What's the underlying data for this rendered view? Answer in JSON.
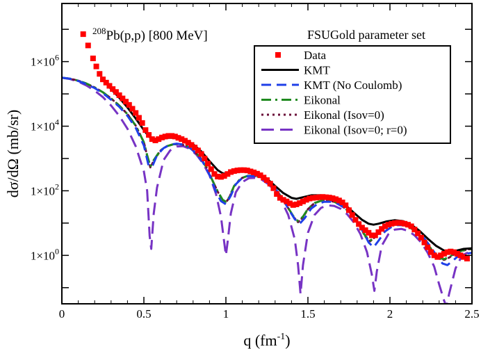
{
  "chart_data": {
    "type": "line",
    "xlabel": "q (fm",
    "xlabel_sup": "-1",
    "xlabel_close": ")",
    "ylabel": "dσ/dΩ (mb/sr)",
    "yscale": "log",
    "xlim": [
      0,
      2.5
    ],
    "ylim_log10": [
      -1.5,
      7.8
    ],
    "x_ticks": [
      {
        "value": 0,
        "label": "0"
      },
      {
        "value": 0.5,
        "label": "0.5"
      },
      {
        "value": 1,
        "label": "1"
      },
      {
        "value": 1.5,
        "label": "1.5"
      },
      {
        "value": 2,
        "label": "2"
      },
      {
        "value": 2.5,
        "label": "2.5"
      }
    ],
    "y_ticks": [
      {
        "exp": 0,
        "base": "1×10",
        "sup": "0"
      },
      {
        "exp": 2,
        "base": "1×10",
        "sup": "2"
      },
      {
        "exp": 4,
        "base": "1×10",
        "sup": "4"
      },
      {
        "exp": 6,
        "base": "1×10",
        "sup": "6"
      }
    ],
    "annotation": {
      "sup": "208",
      "text": "Pb(p,p) [800 MeV]"
    },
    "legend_title": "FSUGold parameter set",
    "legend_position": "top-right",
    "series": [
      {
        "name": "Data",
        "style": "points",
        "color": "#ff0000",
        "x": [
          0.13,
          0.16,
          0.19,
          0.21,
          0.23,
          0.25,
          0.27,
          0.29,
          0.31,
          0.33,
          0.35,
          0.37,
          0.39,
          0.41,
          0.43,
          0.45,
          0.47,
          0.49,
          0.51,
          0.53,
          0.55,
          0.57,
          0.59,
          0.61,
          0.63,
          0.65,
          0.67,
          0.69,
          0.71,
          0.73,
          0.75,
          0.77,
          0.79,
          0.81,
          0.83,
          0.85,
          0.87,
          0.89,
          0.91,
          0.93,
          0.95,
          0.97,
          0.99,
          1.01,
          1.03,
          1.05,
          1.07,
          1.09,
          1.11,
          1.13,
          1.15,
          1.17,
          1.19,
          1.21,
          1.23,
          1.25,
          1.27,
          1.29,
          1.31,
          1.33,
          1.35,
          1.37,
          1.39,
          1.41,
          1.43,
          1.45,
          1.47,
          1.49,
          1.51,
          1.53,
          1.55,
          1.57,
          1.59,
          1.61,
          1.63,
          1.65,
          1.67,
          1.69,
          1.71,
          1.73,
          1.75,
          1.77,
          1.79,
          1.81,
          1.83,
          1.85,
          1.87,
          1.89,
          1.91,
          1.93,
          1.95,
          1.97,
          1.99,
          2.01,
          2.03,
          2.05,
          2.07,
          2.09,
          2.11,
          2.13,
          2.15,
          2.17,
          2.19,
          2.21,
          2.23,
          2.25,
          2.27,
          2.29,
          2.31,
          2.33,
          2.35,
          2.37,
          2.39,
          2.41,
          2.43,
          2.45,
          2.47
        ],
        "log10y": [
          6.85,
          6.5,
          6.1,
          5.85,
          5.62,
          5.45,
          5.35,
          5.25,
          5.15,
          5.06,
          4.96,
          4.86,
          4.76,
          4.66,
          4.54,
          4.41,
          4.26,
          4.1,
          3.88,
          3.73,
          3.6,
          3.56,
          3.6,
          3.65,
          3.68,
          3.7,
          3.7,
          3.68,
          3.64,
          3.6,
          3.55,
          3.49,
          3.42,
          3.34,
          3.25,
          3.14,
          3.0,
          2.84,
          2.67,
          2.52,
          2.44,
          2.43,
          2.46,
          2.52,
          2.58,
          2.61,
          2.63,
          2.64,
          2.64,
          2.63,
          2.6,
          2.57,
          2.53,
          2.48,
          2.41,
          2.33,
          2.22,
          2.08,
          1.9,
          1.78,
          1.72,
          1.67,
          1.61,
          1.56,
          1.58,
          1.62,
          1.67,
          1.72,
          1.76,
          1.78,
          1.79,
          1.8,
          1.81,
          1.8,
          1.79,
          1.77,
          1.74,
          1.7,
          1.64,
          1.55,
          1.4,
          1.25,
          1.1,
          0.97,
          0.86,
          0.78,
          0.7,
          0.62,
          0.62,
          0.72,
          0.82,
          0.9,
          0.95,
          0.98,
          1.0,
          1.01,
          1.0,
          0.98,
          0.95,
          0.9,
          0.8,
          0.68,
          0.55,
          0.4,
          0.25,
          0.1,
          0.0,
          -0.05,
          0.0,
          0.05,
          0.1,
          0.12,
          0.1,
          0.05,
          0.0,
          -0.05,
          -0.1
        ]
      },
      {
        "name": "KMT",
        "style": "solid",
        "color": "#000000",
        "width": 3,
        "x": [
          0.25,
          0.3,
          0.35,
          0.4,
          0.45,
          0.5,
          0.53,
          0.56,
          0.6,
          0.65,
          0.7,
          0.75,
          0.8,
          0.85,
          0.9,
          0.95,
          0.98,
          1.01,
          1.05,
          1.1,
          1.15,
          1.2,
          1.25,
          1.3,
          1.35,
          1.4,
          1.43,
          1.47,
          1.52,
          1.58,
          1.63,
          1.68,
          1.73,
          1.78,
          1.83,
          1.87,
          1.9,
          1.93,
          1.98,
          2.03,
          2.08,
          2.13,
          2.18,
          2.23,
          2.28,
          2.33,
          2.36,
          2.4,
          2.45,
          2.5
        ],
        "log10y": [
          5.45,
          5.15,
          4.88,
          4.58,
          4.24,
          3.88,
          3.68,
          3.58,
          3.6,
          3.64,
          3.64,
          3.58,
          3.44,
          3.22,
          2.92,
          2.64,
          2.54,
          2.52,
          2.58,
          2.62,
          2.6,
          2.52,
          2.38,
          2.15,
          1.93,
          1.78,
          1.75,
          1.8,
          1.86,
          1.86,
          1.82,
          1.72,
          1.55,
          1.32,
          1.1,
          0.98,
          0.95,
          0.98,
          1.05,
          1.09,
          1.06,
          0.95,
          0.76,
          0.52,
          0.3,
          0.15,
          0.12,
          0.14,
          0.2,
          0.22
        ]
      },
      {
        "name": "KMT (No Coulomb)",
        "style": "dash",
        "color": "#1f3fe8",
        "width": 3,
        "x": [
          0,
          0.05,
          0.1,
          0.15,
          0.2,
          0.25,
          0.3,
          0.35,
          0.4,
          0.45,
          0.5,
          0.53,
          0.555,
          0.58,
          0.62,
          0.66,
          0.7,
          0.74,
          0.78,
          0.82,
          0.86,
          0.9,
          0.94,
          0.97,
          1.0,
          1.03,
          1.06,
          1.1,
          1.14,
          1.18,
          1.22,
          1.26,
          1.3,
          1.34,
          1.38,
          1.42,
          1.45,
          1.48,
          1.52,
          1.56,
          1.6,
          1.64,
          1.68,
          1.72,
          1.76,
          1.8,
          1.84,
          1.87,
          1.9,
          1.93,
          1.97,
          2.01,
          2.05,
          2.09,
          2.13,
          2.17,
          2.21,
          2.25,
          2.29,
          2.32,
          2.35,
          2.38,
          2.42,
          2.46,
          2.5
        ],
        "log10y": [
          5.5,
          5.47,
          5.4,
          5.3,
          5.18,
          5.02,
          4.82,
          4.6,
          4.32,
          3.95,
          3.4,
          2.75,
          2.8,
          3.1,
          3.32,
          3.43,
          3.46,
          3.43,
          3.33,
          3.15,
          2.88,
          2.5,
          1.96,
          1.68,
          1.58,
          1.85,
          2.2,
          2.4,
          2.46,
          2.45,
          2.4,
          2.27,
          2.07,
          1.8,
          1.45,
          1.12,
          0.98,
          1.15,
          1.45,
          1.6,
          1.66,
          1.66,
          1.6,
          1.48,
          1.3,
          1.05,
          0.7,
          0.4,
          0.25,
          0.45,
          0.74,
          0.88,
          0.94,
          0.93,
          0.86,
          0.72,
          0.52,
          0.25,
          -0.05,
          -0.25,
          -0.3,
          -0.18,
          0.0,
          0.05,
          0.08
        ]
      },
      {
        "name": "Eikonal",
        "style": "dashdot",
        "color": "#1f8a1f",
        "width": 3,
        "x": [
          0,
          0.05,
          0.1,
          0.15,
          0.2,
          0.25,
          0.3,
          0.35,
          0.4,
          0.45,
          0.5,
          0.52,
          0.54,
          0.56,
          0.6,
          0.64,
          0.68,
          0.72,
          0.76,
          0.8,
          0.84,
          0.88,
          0.92,
          0.95,
          0.98,
          1.0,
          1.02,
          1.05,
          1.09,
          1.13,
          1.17,
          1.21,
          1.25,
          1.29,
          1.33,
          1.37,
          1.41,
          1.44,
          1.47,
          1.5,
          1.54,
          1.58,
          1.62,
          1.66,
          1.7,
          1.74,
          1.78,
          1.82,
          1.85,
          1.88,
          1.91,
          1.95,
          1.99,
          2.03,
          2.07,
          2.11,
          2.15,
          2.19,
          2.23,
          2.27,
          2.3,
          2.33,
          2.36,
          2.4,
          2.44,
          2.48,
          2.5
        ],
        "log10y": [
          5.5,
          5.47,
          5.41,
          5.32,
          5.2,
          5.05,
          4.86,
          4.64,
          4.37,
          4.02,
          3.5,
          3.1,
          2.75,
          2.95,
          3.25,
          3.38,
          3.44,
          3.45,
          3.39,
          3.26,
          3.05,
          2.74,
          2.3,
          1.98,
          1.72,
          1.66,
          1.8,
          2.15,
          2.38,
          2.46,
          2.47,
          2.42,
          2.31,
          2.12,
          1.86,
          1.55,
          1.22,
          1.06,
          1.2,
          1.44,
          1.62,
          1.69,
          1.7,
          1.66,
          1.56,
          1.4,
          1.18,
          0.88,
          0.6,
          0.46,
          0.58,
          0.8,
          0.92,
          0.97,
          0.96,
          0.9,
          0.77,
          0.58,
          0.34,
          0.08,
          -0.08,
          -0.12,
          -0.05,
          0.08,
          0.15,
          0.2,
          0.2
        ]
      },
      {
        "name": "Eikonal (Isov=0)",
        "style": "dot",
        "color": "#6b0f3a",
        "width": 3,
        "x": [
          0,
          0.05,
          0.1,
          0.15,
          0.2,
          0.25,
          0.3,
          0.35,
          0.4,
          0.45,
          0.5,
          0.52,
          0.54,
          0.56,
          0.6,
          0.64,
          0.68,
          0.72,
          0.76,
          0.8,
          0.84,
          0.88,
          0.92,
          0.95,
          0.98,
          1.0,
          1.02,
          1.05,
          1.09,
          1.13,
          1.17,
          1.21,
          1.25,
          1.29,
          1.33,
          1.37,
          1.41,
          1.44,
          1.47,
          1.5,
          1.54,
          1.58,
          1.62,
          1.66,
          1.7,
          1.74,
          1.78,
          1.82,
          1.85,
          1.88,
          1.91,
          1.95,
          1.99,
          2.03,
          2.07,
          2.11,
          2.15,
          2.19,
          2.23,
          2.27,
          2.3,
          2.33,
          2.36,
          2.4,
          2.44,
          2.48,
          2.5
        ],
        "log10y": [
          5.5,
          5.47,
          5.41,
          5.32,
          5.2,
          5.05,
          4.86,
          4.64,
          4.37,
          4.02,
          3.5,
          3.08,
          2.72,
          2.93,
          3.24,
          3.38,
          3.44,
          3.45,
          3.39,
          3.26,
          3.05,
          2.74,
          2.3,
          1.97,
          1.7,
          1.64,
          1.78,
          2.14,
          2.38,
          2.46,
          2.47,
          2.42,
          2.31,
          2.12,
          1.86,
          1.55,
          1.2,
          1.03,
          1.18,
          1.43,
          1.62,
          1.69,
          1.7,
          1.66,
          1.56,
          1.4,
          1.18,
          0.87,
          0.58,
          0.44,
          0.57,
          0.8,
          0.92,
          0.97,
          0.96,
          0.9,
          0.77,
          0.58,
          0.33,
          0.06,
          -0.1,
          -0.14,
          -0.07,
          0.06,
          0.14,
          0.19,
          0.19
        ]
      },
      {
        "name": "Eikonal (Isov=0; r=0)",
        "style": "longdash",
        "color": "#7733c4",
        "width": 3,
        "x": [
          0,
          0.05,
          0.1,
          0.15,
          0.2,
          0.25,
          0.3,
          0.35,
          0.4,
          0.45,
          0.5,
          0.52,
          0.535,
          0.545,
          0.56,
          0.58,
          0.62,
          0.66,
          0.7,
          0.74,
          0.78,
          0.82,
          0.86,
          0.9,
          0.94,
          0.97,
          0.99,
          1.0,
          1.01,
          1.03,
          1.06,
          1.1,
          1.14,
          1.18,
          1.22,
          1.26,
          1.3,
          1.34,
          1.38,
          1.42,
          1.44,
          1.455,
          1.47,
          1.5,
          1.54,
          1.58,
          1.62,
          1.66,
          1.7,
          1.74,
          1.78,
          1.82,
          1.86,
          1.89,
          1.905,
          1.92,
          1.95,
          1.99,
          2.03,
          2.07,
          2.11,
          2.15,
          2.19,
          2.23,
          2.27,
          2.3,
          2.33,
          2.345,
          2.36,
          2.4,
          2.44,
          2.48,
          2.5
        ],
        "log10y": [
          5.5,
          5.46,
          5.38,
          5.26,
          5.1,
          4.9,
          4.64,
          4.32,
          3.92,
          3.38,
          2.6,
          2.0,
          0.6,
          0.2,
          1.3,
          2.1,
          2.95,
          3.25,
          3.37,
          3.38,
          3.3,
          3.12,
          2.85,
          2.48,
          1.9,
          1.2,
          0.4,
          0.0,
          0.4,
          1.3,
          1.95,
          2.27,
          2.39,
          2.4,
          2.34,
          2.2,
          1.98,
          1.68,
          1.25,
          0.5,
          -0.3,
          -1.2,
          -0.3,
          0.7,
          1.25,
          1.47,
          1.55,
          1.53,
          1.44,
          1.27,
          1.02,
          0.66,
          0.1,
          -0.6,
          -1.1,
          -0.5,
          0.3,
          0.65,
          0.8,
          0.82,
          0.76,
          0.62,
          0.4,
          0.08,
          -0.35,
          -0.9,
          -1.4,
          -1.6,
          -1.2,
          -0.4,
          0.0,
          0.1,
          0.12
        ]
      }
    ]
  }
}
